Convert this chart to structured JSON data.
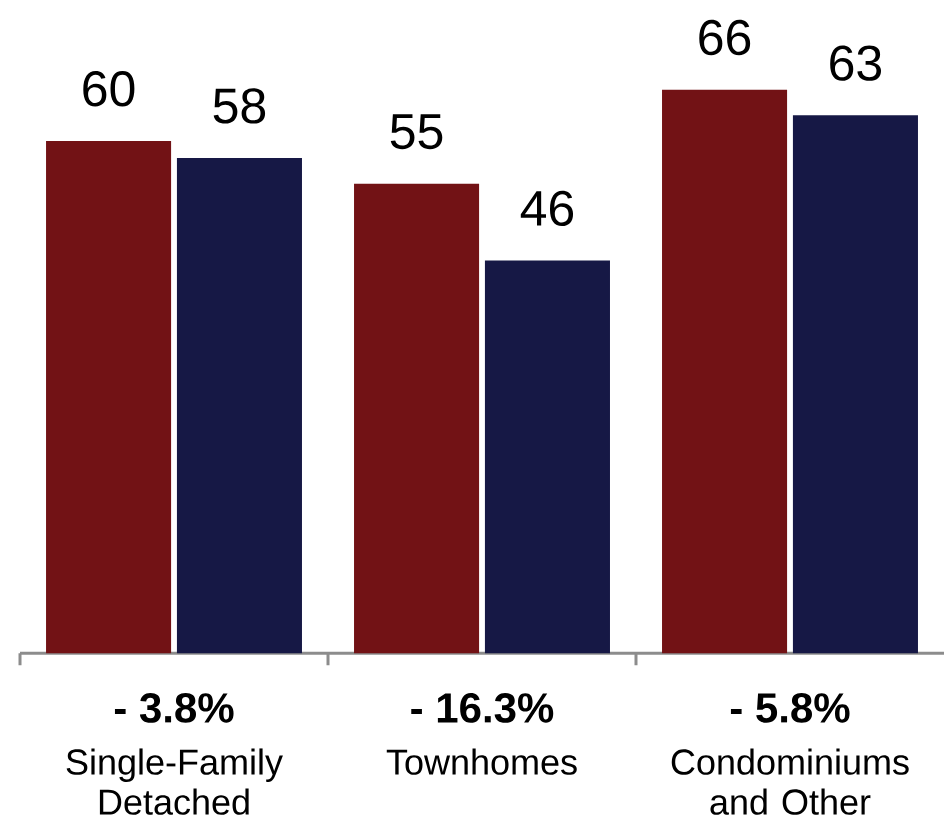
{
  "chart_data": {
    "type": "bar",
    "categories": [
      "Single-Family Detached",
      "Townhomes",
      "Condominiums and Other"
    ],
    "series": [
      {
        "color": "#721215",
        "values": [
          60,
          55,
          66
        ]
      },
      {
        "color": "#161845",
        "values": [
          58,
          46,
          63
        ]
      }
    ],
    "data_labels": true,
    "annotations": [
      "- 3.8%",
      "- 16.3%",
      "- 5.8%"
    ]
  }
}
